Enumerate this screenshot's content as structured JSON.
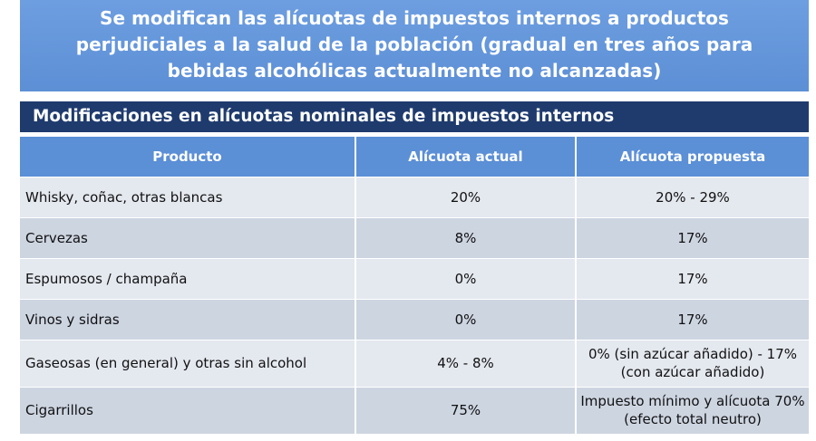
{
  "banner": {
    "title": "Se modifican las alícuotas de impuestos internos a productos perjudiciales a la salud de la población (gradual en tres años para bebidas alcohólicas actualmente no alcanzadas)"
  },
  "subtitle": "Modificaciones en alícuotas nominales de impuestos internos",
  "table": {
    "headers": [
      "Producto",
      "Alícuota actual",
      "Alícuota propuesta"
    ],
    "rows": [
      [
        "Whisky, coñac, otras blancas",
        "20%",
        "20% - 29%"
      ],
      [
        "Cervezas",
        "8%",
        "17%"
      ],
      [
        "Espumosos / champaña",
        "0%",
        "17%"
      ],
      [
        "Vinos y sidras",
        "0%",
        "17%"
      ],
      [
        "Gaseosas (en general) y otras sin alcohol",
        "4% - 8%",
        "0% (sin azúcar añadido) - 17% (con azúcar añadido)"
      ],
      [
        "Cigarrillos",
        "75%",
        "Impuesto mínimo y alícuota 70% (efecto total neutro)"
      ]
    ]
  }
}
